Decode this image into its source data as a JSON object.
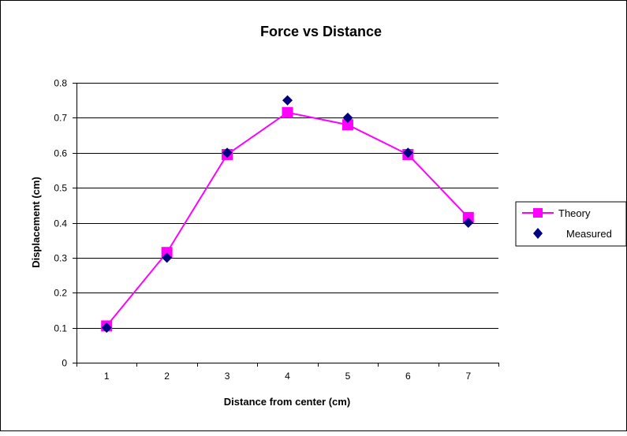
{
  "chart_data": {
    "type": "line",
    "title": "Force vs Distance",
    "xlabel": "Distance from center (cm)",
    "ylabel": "Displacement (cm)",
    "categories": [
      "1",
      "2",
      "3",
      "4",
      "5",
      "6",
      "7"
    ],
    "ylim": [
      0,
      0.8
    ],
    "yticks": [
      "0",
      "0.1",
      "0.2",
      "0.3",
      "0.4",
      "0.5",
      "0.6",
      "0.7",
      "0.8"
    ],
    "grid": true,
    "legend_position": "right",
    "series": [
      {
        "name": "Theory",
        "marker": "square",
        "line": true,
        "color": "#FF00FF",
        "values": [
          0.105,
          0.315,
          0.595,
          0.715,
          0.68,
          0.595,
          0.415
        ]
      },
      {
        "name": "Measured",
        "marker": "diamond",
        "line": false,
        "color": "#000080",
        "values": [
          0.1,
          0.3,
          0.6,
          0.75,
          0.7,
          0.6,
          0.4
        ]
      }
    ]
  }
}
